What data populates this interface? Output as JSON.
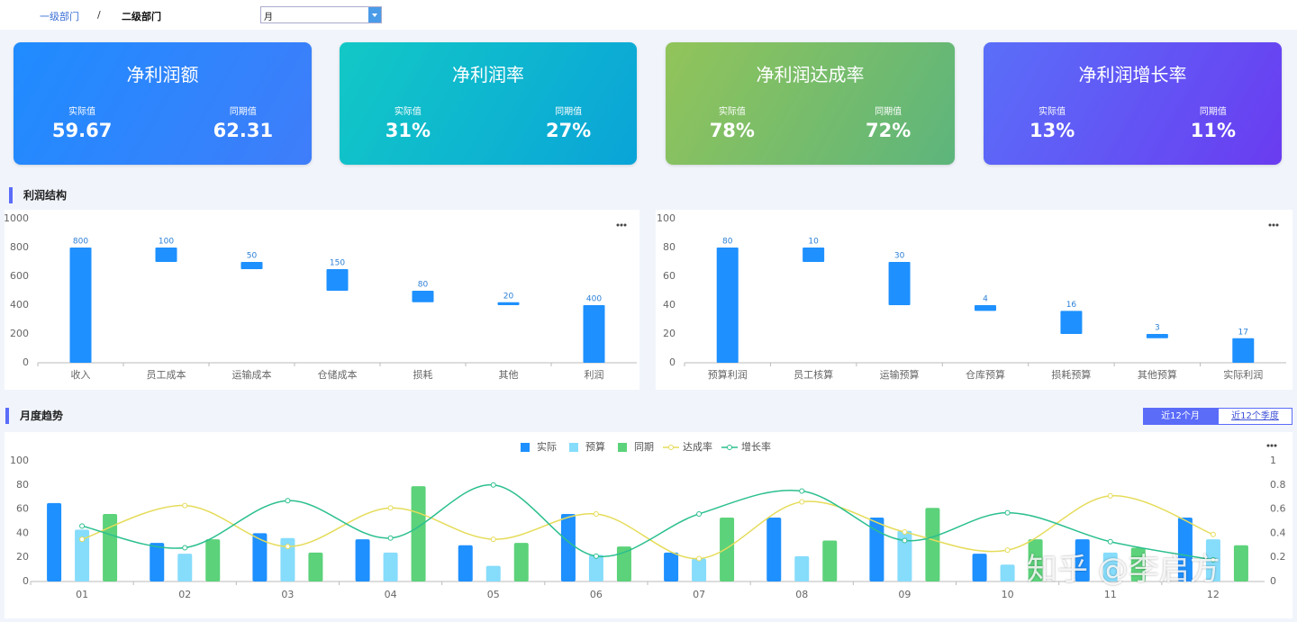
{
  "header": {
    "breadcrumb": [
      "一级部门",
      "/",
      "二级部门"
    ],
    "period": "月"
  },
  "kpis": [
    {
      "title": "净利润额",
      "labels": [
        "实际值",
        "同期值"
      ],
      "values": [
        "59.67",
        "62.31"
      ]
    },
    {
      "title": "净利润率",
      "labels": [
        "实际值",
        "同期值"
      ],
      "values": [
        "31%",
        "27%"
      ]
    },
    {
      "title": "净利润达成率",
      "labels": [
        "实际值",
        "同期值"
      ],
      "values": [
        "78%",
        "72%"
      ]
    },
    {
      "title": "净利润增长率",
      "labels": [
        "实际值",
        "同期值"
      ],
      "values": [
        "13%",
        "11%"
      ]
    }
  ],
  "sections": [
    "利润结构",
    "月度趋势"
  ],
  "buttons": [
    "近12个月",
    "近12个季度"
  ],
  "watermark": "知乎 @李启方",
  "chart_data": [
    {
      "type": "waterfall",
      "categories": [
        "收入",
        "员工成本",
        "运输成本",
        "仓储成本",
        "损耗",
        "其他",
        "利润"
      ],
      "values": [
        800,
        100,
        50,
        150,
        80,
        20,
        400
      ],
      "color": "#1e90ff",
      "ylim": [
        0,
        1000
      ],
      "yticks": [
        0,
        200,
        400,
        600,
        800,
        1000
      ],
      "grid": false
    },
    {
      "type": "waterfall",
      "categories": [
        "预算利润",
        "员工核算",
        "运输预算",
        "仓库预算",
        "损耗预算",
        "其他预算",
        "实际利润"
      ],
      "values": [
        80,
        10,
        30,
        4,
        16,
        3,
        17
      ],
      "color": "#1e90ff",
      "ylim": [
        0,
        100
      ],
      "yticks": [
        0,
        20,
        40,
        60,
        80,
        100
      ],
      "grid": false
    },
    {
      "type": "combo",
      "categories": [
        "01",
        "02",
        "03",
        "04",
        "05",
        "06",
        "07",
        "08",
        "09",
        "10",
        "11",
        "12"
      ],
      "series": [
        {
          "name": "实际",
          "type": "bar",
          "color": "#1e90ff",
          "values": [
            65,
            32,
            40,
            35,
            30,
            56,
            24,
            53,
            53,
            23,
            35,
            53
          ]
        },
        {
          "name": "预算",
          "type": "bar",
          "color": "#86dcfb",
          "values": [
            43,
            23,
            36,
            24,
            13,
            22,
            19,
            21,
            42,
            14,
            24,
            35
          ]
        },
        {
          "name": "同期",
          "type": "bar",
          "color": "#5cd27a",
          "values": [
            56,
            35,
            24,
            79,
            32,
            29,
            53,
            34,
            61,
            35,
            28,
            30
          ]
        },
        {
          "name": "达成率",
          "type": "line",
          "axis": "y2",
          "color": "#e5dc5a",
          "values": [
            0.35,
            0.63,
            0.29,
            0.61,
            0.35,
            0.56,
            0.19,
            0.66,
            0.41,
            0.26,
            0.71,
            0.39
          ]
        },
        {
          "name": "增长率",
          "type": "line",
          "axis": "y2",
          "color": "#2bbf8f",
          "values": [
            0.46,
            0.28,
            0.67,
            0.36,
            0.8,
            0.21,
            0.56,
            0.75,
            0.34,
            0.57,
            0.33,
            0.18
          ]
        }
      ],
      "ylim": [
        0,
        100
      ],
      "yticks": [
        0,
        20,
        40,
        60,
        80,
        100
      ],
      "y2lim": [
        0,
        1
      ],
      "y2ticks": [
        0,
        0.2,
        0.4,
        0.6,
        0.8,
        1
      ],
      "grid": false,
      "legend": "top"
    }
  ]
}
